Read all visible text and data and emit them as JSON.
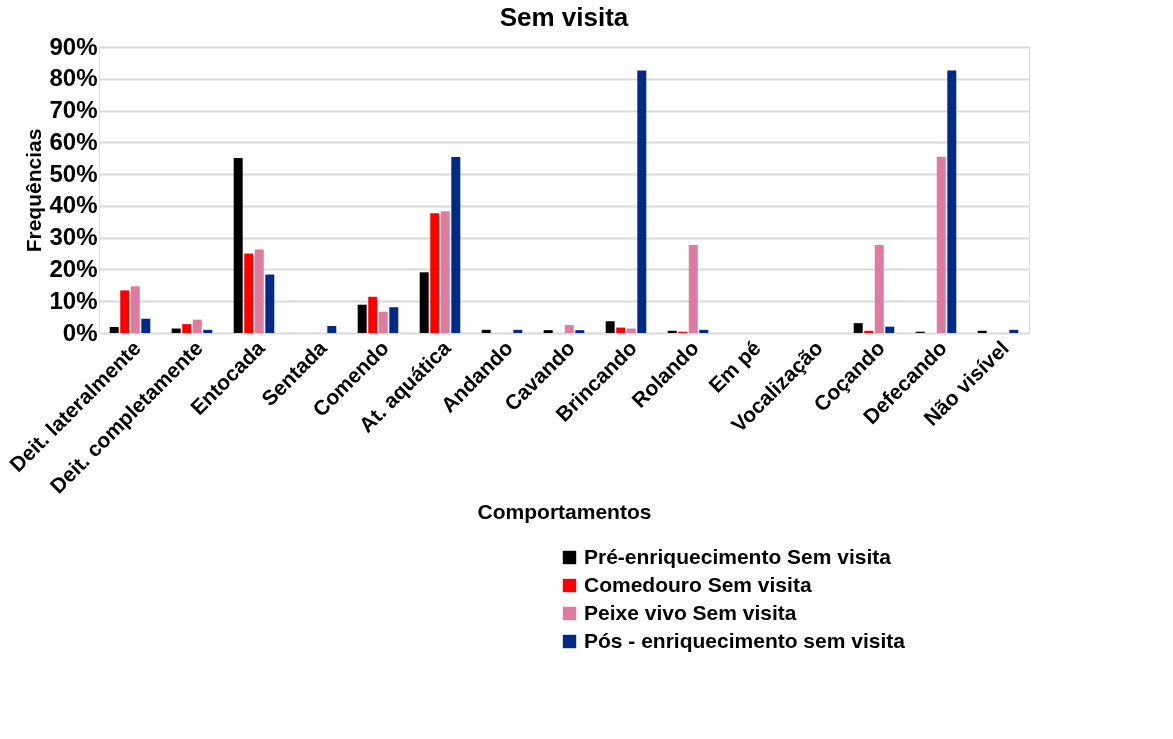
{
  "chart_data": {
    "type": "bar",
    "title": "Sem visita",
    "xlabel": "Comportamentos",
    "ylabel": "Frequências",
    "categories": [
      "Deit. lateralmente",
      "Deit. completamente",
      "Entocada",
      "Sentada",
      "Comendo",
      "At. aquática",
      "Andando",
      "Cavando",
      "Brincando",
      "Rolando",
      "Em pé",
      "Vocalização",
      "Coçando",
      "Defecando",
      "Não visível"
    ],
    "series": [
      {
        "name": "Pré-enriquecimento Sem visita",
        "color": "#000000",
        "values": [
          1.9,
          1.4,
          55.1,
          0,
          8.9,
          19.1,
          1.0,
          0.9,
          3.7,
          0.7,
          0,
          0,
          3.1,
          0.4,
          0.7
        ]
      },
      {
        "name": "Comedouro Sem visita",
        "color": "#ff0000",
        "values": [
          13.4,
          2.8,
          25.0,
          0,
          11.4,
          37.7,
          0,
          0,
          1.7,
          0.4,
          0,
          0,
          0.7,
          0,
          0
        ]
      },
      {
        "name": "Peixe vivo Sem visita",
        "color": "#e07ba0",
        "values": [
          14.7,
          4.2,
          26.3,
          0,
          6.7,
          38.3,
          0,
          2.5,
          1.4,
          27.7,
          0,
          0,
          27.7,
          55.5,
          0
        ]
      },
      {
        "name": "Pós - enriquecimento sem visita",
        "color": "#002a85",
        "values": [
          4.5,
          1.0,
          18.4,
          2.2,
          8.1,
          55.4,
          1.0,
          0.9,
          82.6,
          1.0,
          0,
          0,
          2.0,
          82.6,
          1.0
        ]
      }
    ],
    "ylim": [
      0,
      90
    ],
    "yticks": [
      {
        "value": 0,
        "label": "0%"
      },
      {
        "value": 10,
        "label": "10%"
      },
      {
        "value": 20,
        "label": "20%"
      },
      {
        "value": 30,
        "label": "30%"
      },
      {
        "value": 40,
        "label": "40%"
      },
      {
        "value": 50,
        "label": "50%"
      },
      {
        "value": 60,
        "label": "60%"
      },
      {
        "value": 70,
        "label": "70%"
      },
      {
        "value": 80,
        "label": "80%"
      },
      {
        "value": 90,
        "label": "90%"
      }
    ],
    "grid": "y",
    "legend": "bottom right"
  }
}
